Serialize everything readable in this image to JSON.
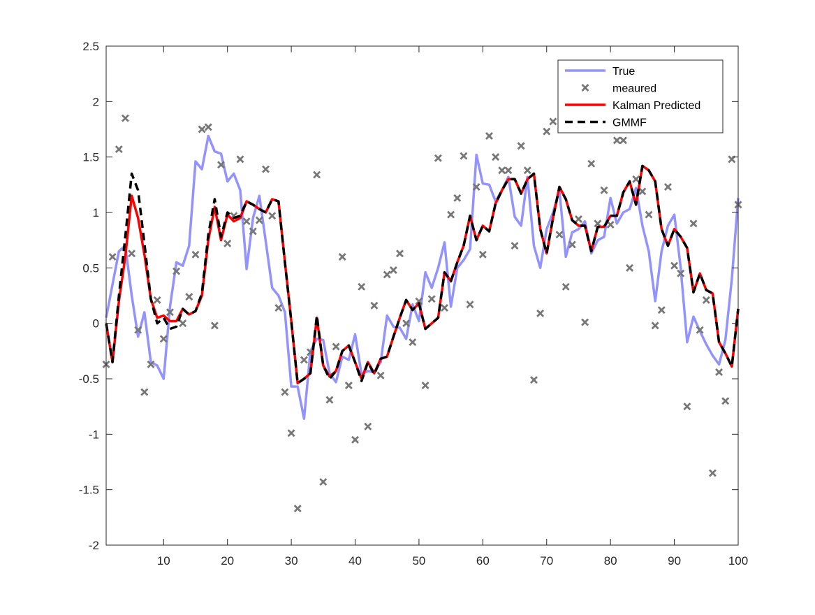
{
  "chart_data": {
    "type": "line",
    "title": "",
    "xlabel": "",
    "ylabel": "",
    "xlim": [
      1,
      100
    ],
    "ylim": [
      -2,
      2.5
    ],
    "x_ticks": [
      10,
      20,
      30,
      40,
      50,
      60,
      70,
      80,
      90,
      100
    ],
    "y_ticks": [
      -2,
      -1.5,
      -1,
      -0.5,
      0,
      0.5,
      1,
      1.5,
      2,
      2.5
    ],
    "x_tick_labels": [
      "10",
      "20",
      "30",
      "40",
      "50",
      "60",
      "70",
      "80",
      "90",
      "100"
    ],
    "y_tick_labels": [
      "-2",
      "-1.5",
      "-1",
      "-0.5",
      "0",
      "0.5",
      "1",
      "1.5",
      "2",
      "2.5"
    ],
    "grid": false,
    "box": true,
    "legend_position": "top-right",
    "x": [
      1,
      2,
      3,
      4,
      5,
      6,
      7,
      8,
      9,
      10,
      11,
      12,
      13,
      14,
      15,
      16,
      17,
      18,
      19,
      20,
      21,
      22,
      23,
      24,
      25,
      26,
      27,
      28,
      29,
      30,
      31,
      32,
      33,
      34,
      35,
      36,
      37,
      38,
      39,
      40,
      41,
      42,
      43,
      44,
      45,
      46,
      47,
      48,
      49,
      50,
      51,
      52,
      53,
      54,
      55,
      56,
      57,
      58,
      59,
      60,
      61,
      62,
      63,
      64,
      65,
      66,
      67,
      68,
      69,
      70,
      71,
      72,
      73,
      74,
      75,
      76,
      77,
      78,
      79,
      80,
      81,
      82,
      83,
      84,
      85,
      86,
      87,
      88,
      89,
      90,
      91,
      92,
      93,
      94,
      95,
      96,
      97,
      98,
      99,
      100
    ],
    "series": [
      {
        "name": "True",
        "kind": "line",
        "color": "#8080ff",
        "values": [
          0.05,
          0.35,
          0.65,
          0.7,
          0.25,
          -0.12,
          0.1,
          -0.35,
          -0.38,
          -0.5,
          0.15,
          0.55,
          0.52,
          0.7,
          1.46,
          1.39,
          1.69,
          1.55,
          1.53,
          1.28,
          1.35,
          1.2,
          0.49,
          0.95,
          1.15,
          0.74,
          0.32,
          0.25,
          0.1,
          -0.57,
          -0.57,
          -0.86,
          -0.25,
          -0.14,
          -0.15,
          -0.45,
          -0.53,
          -0.3,
          -0.33,
          -0.1,
          -0.46,
          -0.43,
          -0.44,
          -0.35,
          0.07,
          -0.03,
          -0.04,
          -0.14,
          0.17,
          0.02,
          0.46,
          0.32,
          0.5,
          0.73,
          0.15,
          0.5,
          0.57,
          0.67,
          1.52,
          1.26,
          1.25,
          1.1,
          1.2,
          1.32,
          0.96,
          0.88,
          1.32,
          0.7,
          0.5,
          0.85,
          1.0,
          1.2,
          0.6,
          0.82,
          0.85,
          0.92,
          0.63,
          0.75,
          0.78,
          1.13,
          0.9,
          1.0,
          1.03,
          1.22,
          0.88,
          0.65,
          0.2,
          0.65,
          0.88,
          0.98,
          0.5,
          -0.17,
          0.06,
          -0.07,
          -0.19,
          -0.29,
          -0.37,
          -0.15,
          0.4,
          1.13
        ]
      },
      {
        "name": "meaured",
        "kind": "scatter",
        "color": "#777777",
        "values": [
          -0.37,
          0.6,
          1.57,
          1.85,
          0.63,
          -0.06,
          -0.62,
          -0.37,
          0.21,
          -0.14,
          0.1,
          0.47,
          0.0,
          0.24,
          0.62,
          1.75,
          1.77,
          -0.02,
          1.43,
          0.72,
          0.97,
          1.48,
          0.92,
          0.83,
          0.93,
          1.39,
          0.97,
          0.14,
          -0.62,
          -0.99,
          -1.67,
          -0.33,
          -0.26,
          1.34,
          -1.43,
          -0.69,
          -0.21,
          0.6,
          -0.56,
          -1.05,
          0.33,
          -0.93,
          0.16,
          -0.47,
          0.44,
          0.48,
          0.63,
          0.0,
          -0.17,
          0.2,
          -0.56,
          0.22,
          1.49,
          0.14,
          0.98,
          1.13,
          1.51,
          0.17,
          1.23,
          0.62,
          1.69,
          1.5,
          1.38,
          1.38,
          0.7,
          1.6,
          1.38,
          -0.51,
          0.09,
          1.73,
          1.82,
          0.8,
          0.33,
          0.71,
          0.94,
          0.01,
          1.44,
          0.9,
          1.2,
          0.89,
          1.65,
          1.65,
          0.5,
          1.3,
          1.19,
          0.98,
          -0.02,
          0.12,
          1.23,
          0.52,
          0.45,
          -0.75,
          0.9,
          -0.06,
          0.21,
          -1.35,
          -0.44,
          -0.7,
          1.48,
          1.07
        ]
      },
      {
        "name": "Kalman Predicted",
        "kind": "line",
        "color": "#ff0000",
        "values": [
          0.0,
          -0.35,
          0.2,
          0.6,
          1.15,
          0.95,
          0.62,
          0.22,
          0.05,
          0.07,
          0.02,
          0.02,
          0.13,
          0.08,
          0.11,
          0.25,
          0.75,
          1.05,
          0.75,
          0.98,
          0.92,
          0.95,
          1.1,
          1.07,
          1.03,
          1.0,
          1.12,
          1.1,
          0.55,
          0.02,
          -0.54,
          -0.5,
          -0.45,
          0.05,
          -0.38,
          -0.48,
          -0.43,
          -0.25,
          -0.2,
          -0.35,
          -0.5,
          -0.35,
          -0.45,
          -0.32,
          -0.3,
          -0.12,
          0.05,
          0.21,
          0.12,
          0.18,
          -0.05,
          0.0,
          0.05,
          0.46,
          0.38,
          0.55,
          0.7,
          0.97,
          0.75,
          0.88,
          0.83,
          1.08,
          1.2,
          1.3,
          1.3,
          1.17,
          1.3,
          1.35,
          0.85,
          0.63,
          0.95,
          1.23,
          1.12,
          0.93,
          0.88,
          0.88,
          0.65,
          0.87,
          0.87,
          0.97,
          0.97,
          1.18,
          1.28,
          1.07,
          1.42,
          1.38,
          1.28,
          0.85,
          0.7,
          0.85,
          0.78,
          0.68,
          0.28,
          0.45,
          0.3,
          0.27,
          -0.17,
          -0.27,
          -0.39,
          0.13
        ]
      },
      {
        "name": "GMMF",
        "kind": "dashed-line",
        "color": "#000000",
        "values": [
          0.0,
          -0.35,
          0.25,
          0.78,
          1.35,
          1.2,
          0.72,
          0.22,
          0.0,
          0.05,
          -0.05,
          -0.03,
          0.13,
          0.08,
          0.11,
          0.27,
          0.8,
          1.12,
          0.78,
          1.0,
          0.95,
          0.97,
          1.1,
          1.07,
          1.03,
          1.0,
          1.12,
          1.1,
          0.55,
          0.02,
          -0.54,
          -0.5,
          -0.45,
          0.07,
          -0.38,
          -0.5,
          -0.43,
          -0.25,
          -0.2,
          -0.35,
          -0.52,
          -0.35,
          -0.46,
          -0.32,
          -0.3,
          -0.12,
          0.05,
          0.21,
          0.12,
          0.18,
          -0.05,
          0.0,
          0.05,
          0.46,
          0.38,
          0.55,
          0.7,
          0.97,
          0.75,
          0.88,
          0.83,
          1.08,
          1.2,
          1.3,
          1.3,
          1.17,
          1.3,
          1.35,
          0.85,
          0.63,
          0.95,
          1.23,
          1.12,
          0.93,
          0.88,
          0.88,
          0.65,
          0.87,
          0.87,
          0.97,
          0.97,
          1.18,
          1.28,
          1.07,
          1.42,
          1.38,
          1.28,
          0.85,
          0.7,
          0.85,
          0.78,
          0.68,
          0.28,
          0.45,
          0.3,
          0.27,
          -0.17,
          -0.27,
          -0.39,
          0.13
        ]
      }
    ]
  }
}
